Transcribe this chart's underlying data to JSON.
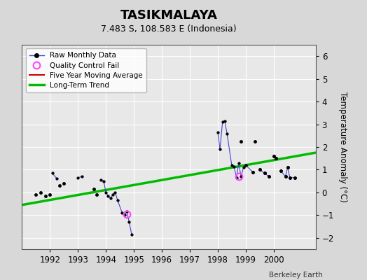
{
  "title": "TASIKMALAYA",
  "subtitle": "7.483 S, 108.583 E (Indonesia)",
  "ylabel": "Temperature Anomaly (°C)",
  "credit": "Berkeley Earth",
  "ylim": [
    -2.5,
    6.5
  ],
  "xlim": [
    1991.0,
    2001.5
  ],
  "yticks": [
    -2,
    -1,
    0,
    1,
    2,
    3,
    4,
    5,
    6
  ],
  "xticks": [
    1992,
    1993,
    1994,
    1995,
    1996,
    1997,
    1998,
    1999,
    2000
  ],
  "background_color": "#d8d8d8",
  "plot_bg_color": "#e8e8e8",
  "grid_color": "#ffffff",
  "line_color": "#4444cc",
  "dot_color": "#000000",
  "trend_color": "#00bb00",
  "qc_color": "#ff44ff",
  "connected_segments": [
    [
      [
        1992.08,
        0.85
      ],
      [
        1992.25,
        0.6
      ]
    ],
    [
      [
        1993.0,
        0.65
      ],
      [
        1993.15,
        0.7
      ]
    ],
    [
      [
        1993.83,
        0.55
      ],
      [
        1993.92,
        0.5
      ],
      [
        1994.0,
        0.0
      ],
      [
        1994.08,
        -0.15
      ],
      [
        1994.17,
        -0.25
      ],
      [
        1994.25,
        -0.1
      ],
      [
        1994.33,
        0.0
      ],
      [
        1994.42,
        -0.35
      ],
      [
        1994.58,
        -0.9
      ],
      [
        1994.67,
        -1.0
      ],
      [
        1994.75,
        -0.85
      ],
      [
        1994.83,
        -1.3
      ],
      [
        1994.92,
        -1.85
      ]
    ],
    [
      [
        1998.0,
        2.65
      ],
      [
        1998.08,
        1.9
      ],
      [
        1998.17,
        3.1
      ],
      [
        1998.25,
        3.15
      ],
      [
        1998.33,
        2.6
      ],
      [
        1998.5,
        1.2
      ],
      [
        1998.58,
        1.15
      ],
      [
        1998.67,
        0.65
      ],
      [
        1998.75,
        1.3
      ],
      [
        1998.83,
        0.7
      ],
      [
        1998.92,
        1.1
      ],
      [
        1999.0,
        1.2
      ]
    ],
    [
      [
        1999.0,
        1.2
      ],
      [
        1999.25,
        0.9
      ]
    ],
    [
      [
        1999.5,
        1.0
      ],
      [
        1999.67,
        0.85
      ],
      [
        1999.83,
        0.7
      ]
    ],
    [
      [
        2000.0,
        1.6
      ],
      [
        2000.08,
        1.5
      ]
    ],
    [
      [
        2000.25,
        0.95
      ],
      [
        2000.42,
        0.7
      ],
      [
        2000.5,
        1.1
      ],
      [
        2000.58,
        0.65
      ],
      [
        2000.75,
        0.65
      ]
    ]
  ],
  "isolated_points": [
    [
      1991.5,
      -0.1
    ],
    [
      1991.67,
      0.0
    ],
    [
      1991.83,
      -0.15
    ],
    [
      1992.0,
      -0.1
    ],
    [
      1992.33,
      0.3
    ],
    [
      1992.5,
      0.4
    ],
    [
      1993.58,
      0.15
    ],
    [
      1993.67,
      -0.1
    ],
    [
      1999.33,
      2.25
    ],
    [
      1999.5,
      1.0
    ],
    [
      1999.67,
      0.85
    ],
    [
      1999.83,
      0.7
    ],
    [
      2000.0,
      1.6
    ],
    [
      2000.08,
      1.5
    ],
    [
      2000.25,
      0.95
    ],
    [
      2000.42,
      0.7
    ],
    [
      2000.5,
      1.1
    ],
    [
      2000.58,
      0.65
    ],
    [
      2000.75,
      0.65
    ],
    [
      1998.83,
      2.25
    ],
    [
      1999.25,
      0.9
    ]
  ],
  "qc_fail_points": [
    [
      1994.75,
      -0.95
    ],
    [
      1998.75,
      0.7
    ]
  ],
  "trend_line": {
    "x": [
      1991.0,
      2001.5
    ],
    "y": [
      -0.55,
      1.75
    ]
  }
}
